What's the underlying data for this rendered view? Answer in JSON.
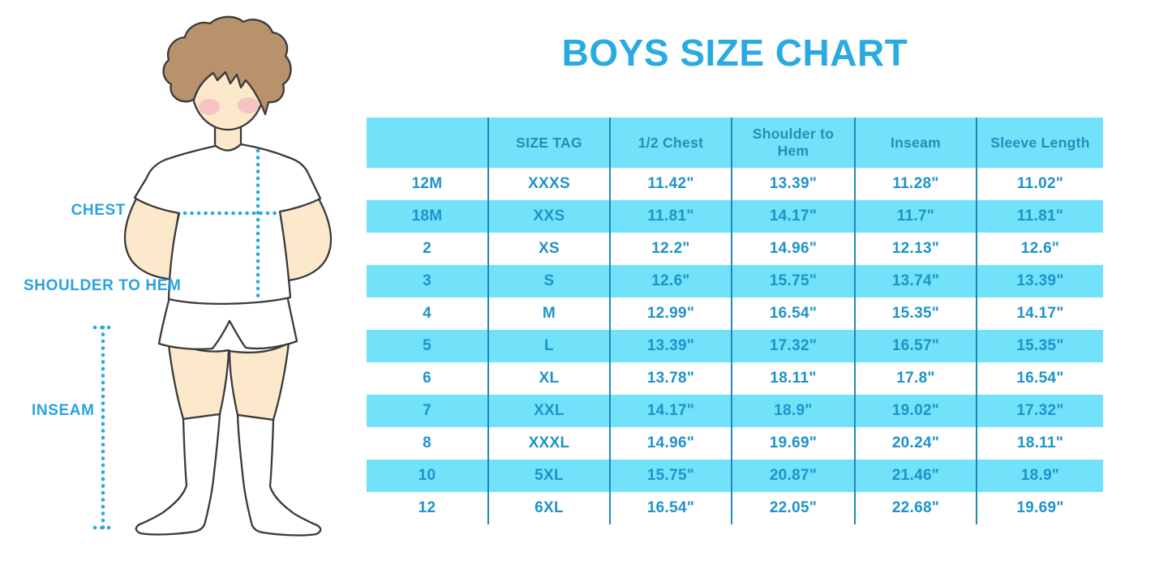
{
  "title": "BOYS SIZE CHART",
  "figure_labels": {
    "chest": "CHEST",
    "shoulder_to_hem": "SHOULDER TO HEM",
    "inseam": "INSEAM"
  },
  "colors": {
    "accent_blue": "#29abe2",
    "table_band_cyan": "#71e2fa",
    "table_divider": "#1e88b8",
    "table_text": "#1e93c9",
    "header_text": "#2a8ab6",
    "dotted_line": "#29a9e1",
    "skin": "#fce9cb",
    "hair": "#b8926a"
  },
  "chart_data": {
    "type": "table",
    "title": "BOYS SIZE CHART",
    "columns": [
      "",
      "SIZE TAG",
      "1/2 Chest",
      "Shoulder to Hem",
      "Inseam",
      "Sleeve Length"
    ],
    "rows": [
      [
        "12M",
        "XXXS",
        "11.42\"",
        "13.39\"",
        "11.28\"",
        "11.02\""
      ],
      [
        "18M",
        "XXS",
        "11.81\"",
        "14.17\"",
        "11.7\"",
        "11.81\""
      ],
      [
        "2",
        "XS",
        "12.2\"",
        "14.96\"",
        "12.13\"",
        "12.6\""
      ],
      [
        "3",
        "S",
        "12.6\"",
        "15.75\"",
        "13.74\"",
        "13.39\""
      ],
      [
        "4",
        "M",
        "12.99\"",
        "16.54\"",
        "15.35\"",
        "14.17\""
      ],
      [
        "5",
        "L",
        "13.39\"",
        "17.32\"",
        "16.57\"",
        "15.35\""
      ],
      [
        "6",
        "XL",
        "13.78\"",
        "18.11\"",
        "17.8\"",
        "16.54\""
      ],
      [
        "7",
        "XXL",
        "14.17\"",
        "18.9\"",
        "19.02\"",
        "17.32\""
      ],
      [
        "8",
        "XXXL",
        "14.96\"",
        "19.69\"",
        "20.24\"",
        "18.11\""
      ],
      [
        "10",
        "5XL",
        "15.75\"",
        "20.87\"",
        "21.46\"",
        "18.9\""
      ],
      [
        "12",
        "6XL",
        "16.54\"",
        "22.05\"",
        "22.68\"",
        "19.69\""
      ]
    ],
    "layout_hints": {
      "header_background": "cyan band",
      "row_striping": "white / cyan alternating starting white",
      "column_dividers": "vertical teal lines, no outer border"
    }
  }
}
